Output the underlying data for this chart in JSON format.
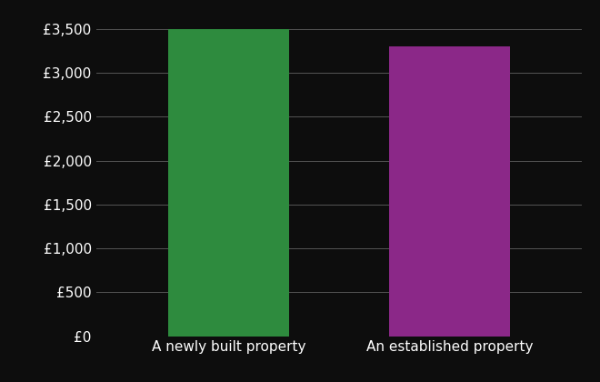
{
  "categories": [
    "A newly built property",
    "An established property"
  ],
  "values": [
    3500,
    3300
  ],
  "bar_colors": [
    "#2e8b3e",
    "#8b2888"
  ],
  "background_color": "#0d0d0d",
  "text_color": "#ffffff",
  "grid_color": "#555555",
  "ylim": [
    0,
    3700
  ],
  "yticks": [
    0,
    500,
    1000,
    1500,
    2000,
    2500,
    3000,
    3500
  ],
  "bar_width": 0.55,
  "fontsize_ticks": 11,
  "fontsize_xlabel": 11
}
